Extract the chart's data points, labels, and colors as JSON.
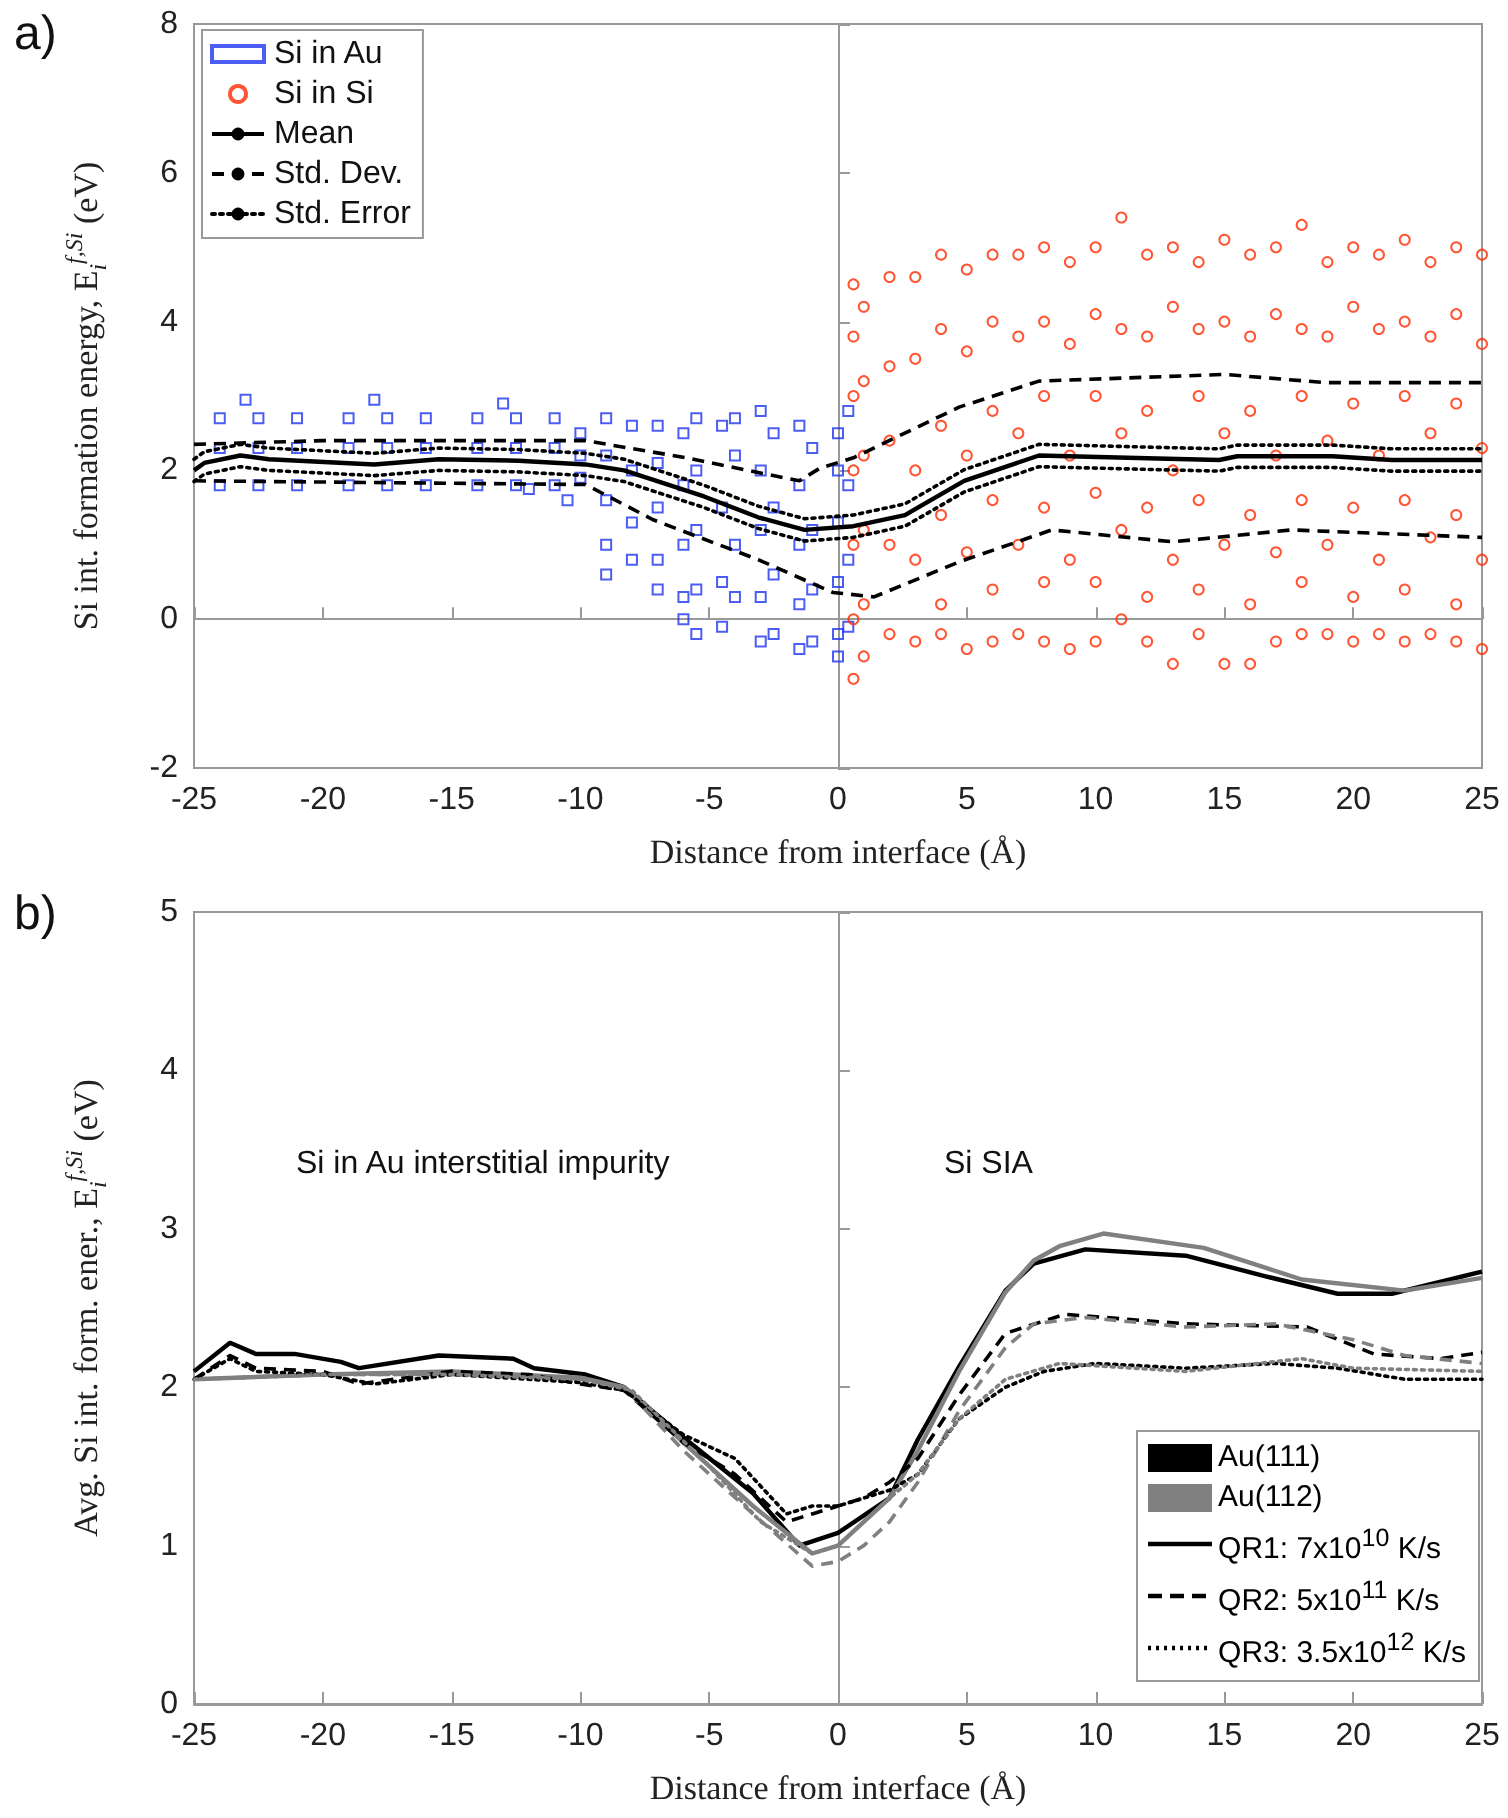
{
  "chart_data": [
    {
      "type": "scatter",
      "title": "a)",
      "xlabel": "Distance from interface (Å)",
      "ylabel": "Si int. formation energy, E$_{i}$$^{f,Si}$ (eV)",
      "xlim": [
        -25,
        25
      ],
      "xticks": [
        -25,
        -20,
        -15,
        -10,
        -5,
        0,
        5,
        10,
        15,
        20,
        25
      ],
      "ylim": [
        -2,
        8
      ],
      "yticks": [
        -2,
        0,
        2,
        4,
        6,
        8
      ],
      "legend": "top left",
      "series": [
        {
          "name": "Si in Au",
          "color": "#1f35f0",
          "marker": "square",
          "x": [
            -24,
            -24,
            -24,
            -22.5,
            -22.5,
            -22.5,
            -21,
            -21,
            -21,
            -19,
            -19,
            -19,
            -17.5,
            -17.5,
            -17.5,
            -16,
            -16,
            -16,
            -14,
            -14,
            -14,
            -12.5,
            -12.5,
            -12.5,
            -11,
            -11,
            -11,
            -23,
            -18,
            -13,
            -10.5,
            -12,
            -10,
            -10,
            -10,
            -9,
            -9,
            -9,
            -9,
            -9,
            -8,
            -8,
            -8,
            -8,
            -7,
            -7,
            -7,
            -7,
            -7,
            -6,
            -6,
            -6,
            -6,
            -6,
            -5.5,
            -5.5,
            -5.5,
            -5.5,
            -5.5,
            -4.5,
            -4.5,
            -4.5,
            -4.5,
            -4,
            -4,
            -4,
            -4,
            -3,
            -3,
            -3,
            -3,
            -3,
            -2.5,
            -2.5,
            -2.5,
            -2.5,
            -1.5,
            -1.5,
            -1.5,
            -1.5,
            -1.5,
            -1,
            -1,
            -1,
            -1,
            0,
            0,
            0,
            0,
            0,
            0,
            0.4,
            0.4,
            0.4,
            0.4
          ],
          "values": [
            2.7,
            2.3,
            1.8,
            2.7,
            2.3,
            1.8,
            2.7,
            2.3,
            1.8,
            2.7,
            2.3,
            1.8,
            2.7,
            2.3,
            1.8,
            2.7,
            2.3,
            1.8,
            2.7,
            2.3,
            1.8,
            2.7,
            2.3,
            1.8,
            2.7,
            2.3,
            1.8,
            2.95,
            2.95,
            2.9,
            1.6,
            1.75,
            2.5,
            2.2,
            1.9,
            2.7,
            2.2,
            1.6,
            1.0,
            0.6,
            2.6,
            2.0,
            1.3,
            0.8,
            2.6,
            2.1,
            1.5,
            0.8,
            0.4,
            2.5,
            1.8,
            1.0,
            0.3,
            0.0,
            2.7,
            2.0,
            1.2,
            0.4,
            -0.2,
            2.6,
            1.5,
            0.5,
            -0.1,
            2.7,
            2.2,
            1.0,
            0.3,
            2.8,
            2.0,
            1.2,
            0.3,
            -0.3,
            2.5,
            1.5,
            0.6,
            -0.2,
            2.6,
            1.8,
            1.0,
            0.2,
            -0.4,
            2.3,
            1.2,
            0.4,
            -0.3,
            2.5,
            2.0,
            1.3,
            0.5,
            -0.2,
            -0.5,
            2.8,
            1.8,
            0.8,
            -0.1
          ]
        },
        {
          "name": "Si in Si",
          "color": "#ff2a00",
          "marker": "circle",
          "x": [
            0.6,
            0.6,
            0.6,
            0.6,
            0.6,
            0.6,
            0.6,
            1,
            1,
            1,
            1,
            1,
            1,
            2,
            2,
            2,
            2,
            2,
            3,
            3,
            3,
            3,
            3,
            4,
            4,
            4,
            4,
            4,
            4,
            5,
            5,
            5,
            5,
            5,
            6,
            6,
            6,
            6,
            6,
            6,
            7,
            7,
            7,
            7,
            7,
            8,
            8,
            8,
            8,
            8,
            8,
            9,
            9,
            9,
            9,
            9,
            10,
            10,
            10,
            10,
            10,
            10,
            11,
            11,
            11,
            11,
            11,
            12,
            12,
            12,
            12,
            12,
            12,
            13,
            13,
            13,
            13,
            13,
            14,
            14,
            14,
            14,
            14,
            14,
            15,
            15,
            15,
            15,
            15,
            16,
            16,
            16,
            16,
            16,
            16,
            17,
            17,
            17,
            17,
            17,
            18,
            18,
            18,
            18,
            18,
            18,
            19,
            19,
            19,
            19,
            19,
            20,
            20,
            20,
            20,
            20,
            20,
            21,
            21,
            21,
            21,
            21,
            22,
            22,
            22,
            22,
            22,
            22,
            23,
            23,
            23,
            23,
            23,
            24,
            24,
            24,
            24,
            24,
            24,
            25,
            25,
            25,
            25,
            25
          ],
          "values": [
            4.5,
            3.8,
            3.0,
            2.0,
            1.0,
            0.0,
            -0.8,
            4.2,
            3.2,
            2.2,
            1.2,
            0.2,
            -0.5,
            4.6,
            3.4,
            2.4,
            1.0,
            -0.2,
            4.6,
            3.5,
            2.0,
            0.8,
            -0.3,
            4.9,
            3.9,
            2.6,
            1.4,
            0.2,
            -0.2,
            4.7,
            3.6,
            2.2,
            0.9,
            -0.4,
            4.9,
            4.0,
            2.8,
            1.6,
            0.4,
            -0.3,
            4.9,
            3.8,
            2.5,
            1.0,
            -0.2,
            5.0,
            4.0,
            3.0,
            1.5,
            0.5,
            -0.3,
            4.8,
            3.7,
            2.2,
            0.8,
            -0.4,
            5.0,
            4.1,
            3.0,
            1.7,
            0.5,
            -0.3,
            5.4,
            3.9,
            2.5,
            1.2,
            0.0,
            4.9,
            3.8,
            2.8,
            1.5,
            0.3,
            -0.3,
            5.0,
            4.2,
            2.0,
            0.8,
            -0.6,
            4.8,
            3.9,
            3.0,
            1.6,
            0.4,
            -0.2,
            5.1,
            4.0,
            2.5,
            1.0,
            -0.6,
            4.9,
            3.8,
            2.8,
            1.4,
            0.2,
            -0.6,
            5.0,
            4.1,
            2.2,
            0.9,
            -0.3,
            5.3,
            3.9,
            3.0,
            1.6,
            0.5,
            -0.2,
            4.8,
            3.8,
            2.4,
            1.0,
            -0.2,
            5.0,
            4.2,
            2.9,
            1.5,
            0.3,
            -0.3,
            4.9,
            3.9,
            2.2,
            0.8,
            -0.2,
            5.1,
            4.0,
            3.0,
            1.6,
            0.4,
            -0.3,
            4.8,
            3.8,
            2.5,
            1.1,
            -0.2,
            5.0,
            4.1,
            2.9,
            1.4,
            0.2,
            -0.3,
            4.9,
            3.7,
            2.3,
            0.8,
            -0.4
          ]
        },
        {
          "name": "Mean",
          "type": "line",
          "color": "#000000",
          "line_style": "solid",
          "marker": "none",
          "x": [
            -25,
            -24.6,
            -23.2,
            -22.1,
            -18,
            -15.5,
            -12.4,
            -9.8,
            -8.3,
            -5.2,
            -3.1,
            -1.3,
            0.6,
            2.6,
            4.9,
            7.8,
            12.4,
            14.8,
            15.5,
            19.2,
            21.5,
            25
          ],
          "values": [
            2.0,
            2.1,
            2.2,
            2.15,
            2.08,
            2.15,
            2.13,
            2.08,
            2.0,
            1.65,
            1.37,
            1.2,
            1.25,
            1.4,
            1.86,
            2.2,
            2.16,
            2.14,
            2.19,
            2.19,
            2.14,
            2.14
          ]
        },
        {
          "name": "Std. Dev.",
          "type": "line",
          "color": "#000000",
          "line_style": "dashed",
          "marker": "none",
          "x": [
            -25,
            -20,
            -9.8,
            -5.9,
            -1.5,
            -0.7,
            0.6,
            4.7,
            7.8,
            15,
            18.9,
            25
          ],
          "values": [
            2.35,
            2.4,
            2.4,
            2.17,
            1.86,
            2.03,
            2.17,
            2.85,
            3.2,
            3.29,
            3.18,
            3.18
          ]
        },
        {
          "type": "line",
          "color": "#000000",
          "line_style": "dashed",
          "marker": "none",
          "x": [
            -25,
            -9.8,
            -7.2,
            -3.1,
            -0.2,
            1.4,
            4.7,
            8.3,
            13,
            17.6,
            25
          ],
          "values": [
            1.86,
            1.81,
            1.34,
            0.8,
            0.36,
            0.3,
            0.77,
            1.2,
            1.04,
            1.2,
            1.1
          ]
        },
        {
          "name": "Std. Error",
          "type": "line",
          "color": "#000000",
          "line_style": "dotted",
          "marker": "none",
          "x": [
            -25,
            -24.6,
            -23.2,
            -22.1,
            -18,
            -15.5,
            -12.4,
            -9.8,
            -8.3,
            -5.2,
            -3.1,
            -1.3,
            0.6,
            2.6,
            4.9,
            7.8,
            12.4,
            14.8,
            15.5,
            19.2,
            21.5,
            25
          ],
          "values": [
            2.15,
            2.25,
            2.35,
            2.3,
            2.23,
            2.3,
            2.28,
            2.23,
            2.15,
            1.8,
            1.52,
            1.35,
            1.4,
            1.55,
            2.01,
            2.35,
            2.31,
            2.29,
            2.34,
            2.34,
            2.29,
            2.29
          ]
        },
        {
          "type": "line",
          "color": "#000000",
          "line_style": "dotted",
          "marker": "none",
          "x": [
            -25,
            -24.6,
            -23.2,
            -22.1,
            -18,
            -15.5,
            -12.4,
            -9.8,
            -8.3,
            -5.2,
            -3.1,
            -1.3,
            0.6,
            2.6,
            4.9,
            7.8,
            12.4,
            14.8,
            15.5,
            19.2,
            21.5,
            25
          ],
          "values": [
            1.85,
            1.95,
            2.05,
            2.0,
            1.93,
            2.0,
            1.98,
            1.93,
            1.85,
            1.5,
            1.22,
            1.05,
            1.1,
            1.25,
            1.71,
            2.05,
            2.01,
            1.99,
            2.04,
            2.04,
            1.99,
            1.99
          ]
        }
      ]
    },
    {
      "type": "line",
      "title": "b)",
      "xlabel": "Distance from interface (Å)",
      "ylabel": "Avg. Si int. form. ener., E$_{i}$$^{f,Si}$ (eV)",
      "xlim": [
        -25,
        25
      ],
      "xticks": [
        -25,
        -20,
        -15,
        -10,
        -5,
        0,
        5,
        10,
        15,
        20,
        25
      ],
      "ylim": [
        0,
        5
      ],
      "yticks": [
        0,
        1,
        2,
        3,
        4,
        5
      ],
      "legend": "bottom right",
      "marker": "none",
      "annotations": [
        "Si in Au interstitial impurity",
        "Si SIA",
        "Au(111)",
        "Au(112)",
        "QR1: 7x10$^{10}$ K/s",
        "QR2: 5x10$^{11}$ K/s",
        "QR3: 3.5x10$^{12}$ K/s"
      ],
      "series": [
        {
          "color": "#000000",
          "line_style": "solid",
          "x": [
            -25,
            -23.6,
            -22.6,
            -21.1,
            -19.3,
            -18.6,
            -15.5,
            -12.6,
            -11.8,
            -9.8,
            -8.3,
            -5.9,
            -3.3,
            -1.5,
            0,
            2,
            3.1,
            4.7,
            6.5,
            7.6,
            9.6,
            13.5,
            16.6,
            19.4,
            21.5,
            25
          ],
          "values": [
            2.1,
            2.28,
            2.21,
            2.21,
            2.16,
            2.12,
            2.2,
            2.18,
            2.12,
            2.08,
            2.0,
            1.67,
            1.33,
            1.0,
            1.08,
            1.3,
            1.67,
            2.13,
            2.61,
            2.78,
            2.87,
            2.83,
            2.7,
            2.59,
            2.59,
            2.73
          ]
        },
        {
          "color": "#808080",
          "line_style": "solid",
          "x": [
            -25,
            -20,
            -15,
            -10,
            -8.3,
            -6,
            -3.3,
            -1,
            0,
            2,
            3.1,
            4.7,
            6.5,
            7.6,
            8.6,
            10.3,
            14.2,
            18,
            22,
            25
          ],
          "values": [
            2.05,
            2.08,
            2.1,
            2.06,
            2.0,
            1.65,
            1.25,
            0.95,
            1.0,
            1.3,
            1.6,
            2.1,
            2.6,
            2.8,
            2.89,
            2.97,
            2.88,
            2.68,
            2.61,
            2.69
          ]
        },
        {
          "color": "#000000",
          "line_style": "dashed",
          "x": [
            -25,
            -23.6,
            -22.6,
            -20,
            -18.6,
            -15,
            -12,
            -10,
            -8.3,
            -6,
            -4,
            -2,
            -1,
            0,
            1,
            2,
            3.1,
            4.7,
            6.5,
            8.8,
            13.5,
            18.2,
            20.8,
            23.4,
            25
          ],
          "values": [
            2.05,
            2.2,
            2.12,
            2.1,
            2.02,
            2.1,
            2.08,
            2.02,
            1.98,
            1.65,
            1.45,
            1.15,
            1.2,
            1.25,
            1.3,
            1.4,
            1.55,
            1.95,
            2.34,
            2.46,
            2.4,
            2.38,
            2.21,
            2.18,
            2.22
          ]
        },
        {
          "color": "#808080",
          "line_style": "dashed",
          "x": [
            -25,
            -20,
            -15,
            -10,
            -8.3,
            -6,
            -3.3,
            -1,
            0,
            1,
            2,
            3.1,
            4.7,
            6.5,
            7.6,
            9.6,
            13.5,
            17,
            20,
            22,
            25
          ],
          "values": [
            2.05,
            2.08,
            2.08,
            2.05,
            2.0,
            1.6,
            1.2,
            0.87,
            0.9,
            1.0,
            1.15,
            1.4,
            1.85,
            2.25,
            2.4,
            2.44,
            2.38,
            2.4,
            2.3,
            2.2,
            2.15
          ]
        },
        {
          "color": "#000000",
          "line_style": "dotted",
          "x": [
            -25,
            -23.6,
            -22.6,
            -20,
            -18,
            -15,
            -10,
            -8.3,
            -6,
            -4,
            -2,
            -1,
            0,
            2,
            3.1,
            4.7,
            6.5,
            8,
            10,
            13.5,
            17,
            19.4,
            22,
            25
          ],
          "values": [
            2.05,
            2.18,
            2.1,
            2.08,
            2.02,
            2.08,
            2.03,
            1.98,
            1.7,
            1.55,
            1.2,
            1.25,
            1.25,
            1.35,
            1.45,
            1.8,
            2.0,
            2.1,
            2.15,
            2.12,
            2.15,
            2.12,
            2.05,
            2.05
          ]
        },
        {
          "color": "#808080",
          "line_style": "dotted",
          "x": [
            -25,
            -20,
            -15,
            -10,
            -8,
            -5,
            -3,
            -1,
            0,
            2,
            3.1,
            4.7,
            6.5,
            8.6,
            13.5,
            18,
            20,
            25
          ],
          "values": [
            2.05,
            2.08,
            2.08,
            2.05,
            1.98,
            1.5,
            1.15,
            0.95,
            1.0,
            1.3,
            1.45,
            1.8,
            2.05,
            2.15,
            2.1,
            2.18,
            2.12,
            2.1
          ]
        }
      ]
    }
  ]
}
